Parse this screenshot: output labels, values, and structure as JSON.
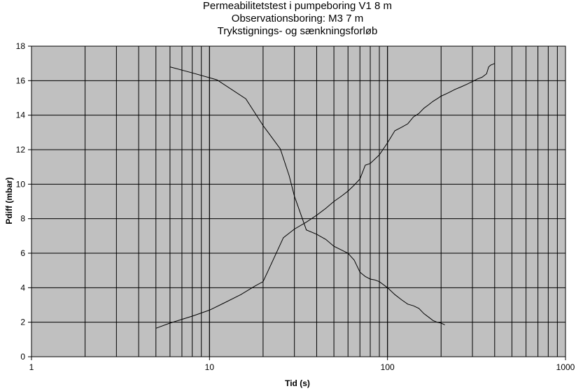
{
  "chart_data": {
    "type": "line",
    "title_lines": [
      "Permeabilitetstest i pumpeboring V1 8 m",
      "Observationsboring: M3 7 m",
      "Trykstignings- og sænkningsforløb"
    ],
    "xlabel": "Tid (s)",
    "ylabel": "Pdiff (mbar)",
    "xscale": "log",
    "xlim": [
      1,
      1000
    ],
    "ylim": [
      0,
      18
    ],
    "xticks": [
      1,
      10,
      100,
      1000
    ],
    "xtick_labels": [
      "1",
      "10",
      "100",
      "1000"
    ],
    "yticks": [
      0,
      2,
      4,
      6,
      8,
      10,
      12,
      14,
      16,
      18
    ],
    "ytick_labels": [
      "0",
      "2",
      "4",
      "6",
      "8",
      "10",
      "12",
      "14",
      "16",
      "18"
    ],
    "grid": true,
    "legend": "none",
    "colors": {
      "plot_background": "#c0c0c0",
      "grid": "#000000",
      "line": "#000000"
    },
    "series": [
      {
        "x": [
          5,
          6,
          8,
          10,
          12,
          15,
          18,
          20,
          26,
          30,
          35,
          40,
          45,
          50,
          55,
          60,
          65,
          70,
          75,
          80,
          90,
          100,
          110,
          120,
          130,
          140,
          150,
          160,
          170,
          180,
          190,
          200,
          220,
          240,
          260,
          280,
          300,
          320,
          340,
          360,
          370,
          380,
          390,
          400
        ],
        "y": [
          1.65,
          1.95,
          2.35,
          2.7,
          3.1,
          3.6,
          4.1,
          4.35,
          6.9,
          7.4,
          7.8,
          8.2,
          8.6,
          9.0,
          9.3,
          9.6,
          9.95,
          10.3,
          11.1,
          11.2,
          11.7,
          12.4,
          13.1,
          13.3,
          13.5,
          13.9,
          14.1,
          14.4,
          14.6,
          14.8,
          14.95,
          15.1,
          15.3,
          15.5,
          15.65,
          15.8,
          15.95,
          16.1,
          16.2,
          16.4,
          16.8,
          16.9,
          16.95,
          17.0
        ]
      },
      {
        "x": [
          6,
          8,
          11,
          16,
          20,
          25,
          28,
          30,
          35,
          40,
          45,
          50,
          60,
          65,
          70,
          75,
          80,
          85,
          90,
          100,
          110,
          120,
          130,
          140,
          150,
          160,
          170,
          180,
          190,
          200,
          210
        ],
        "y": [
          16.8,
          16.45,
          16.05,
          14.95,
          13.4,
          12.05,
          10.5,
          9.3,
          7.35,
          7.1,
          6.8,
          6.4,
          6.0,
          5.6,
          4.9,
          4.65,
          4.5,
          4.45,
          4.35,
          4.0,
          3.6,
          3.3,
          3.05,
          2.95,
          2.8,
          2.5,
          2.3,
          2.1,
          2.0,
          1.95,
          1.85
        ]
      }
    ]
  }
}
